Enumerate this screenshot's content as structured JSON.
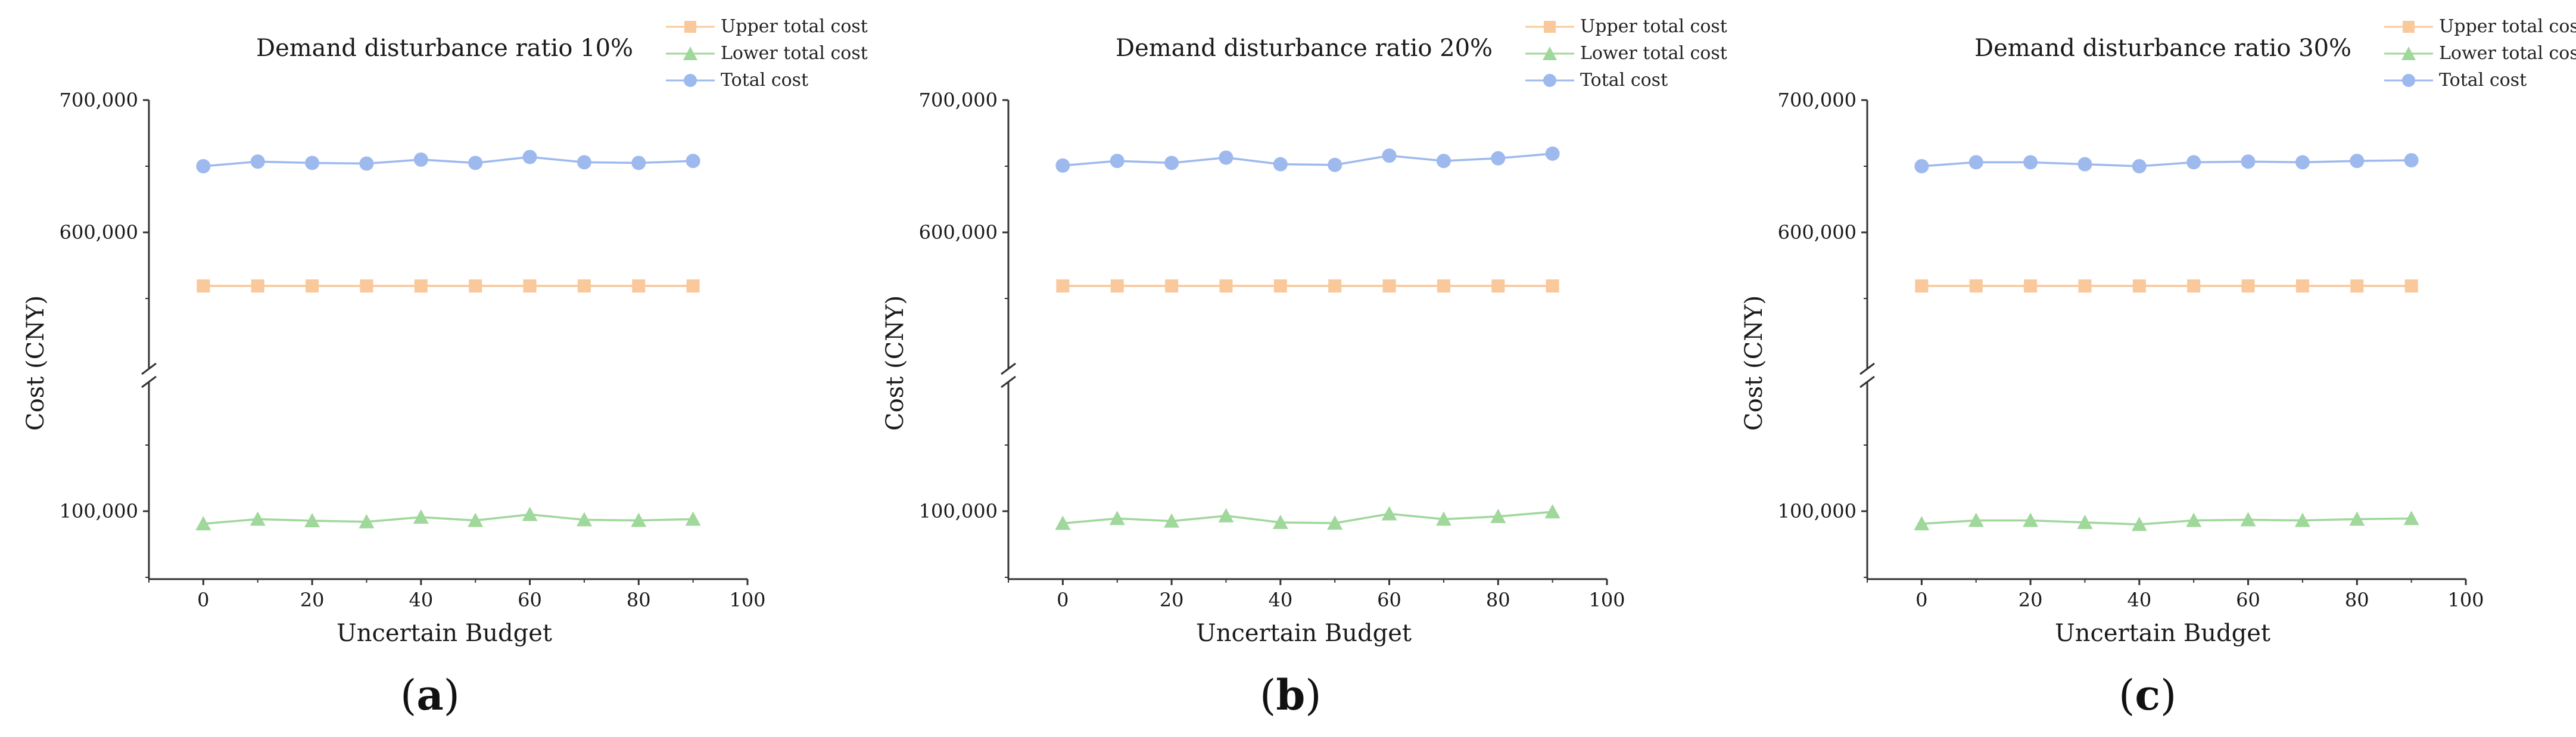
{
  "chart_data": [
    {
      "type": "line",
      "panel_label": "a",
      "title": "Demand disturbance ratio 10%",
      "xlabel": "Uncertain Budget",
      "ylabel": "Cost (CNY)",
      "xlim": [
        -10,
        100
      ],
      "x_ticks": [
        0,
        20,
        40,
        60,
        80,
        100
      ],
      "y_ticks_upper": [
        600000,
        700000
      ],
      "y_ticks_lower": [
        100000
      ],
      "y_tick_labels": [
        "700,000",
        "600,000",
        "100,000"
      ],
      "axis_break": true,
      "x": [
        0,
        10,
        20,
        30,
        40,
        50,
        60,
        70,
        80,
        90
      ],
      "series": [
        {
          "name": "Upper total cost",
          "marker": "square",
          "color": "#F9C89B",
          "values": [
            559500,
            559500,
            559500,
            559500,
            559500,
            559500,
            559500,
            559500,
            559500,
            559500
          ]
        },
        {
          "name": "Lower total cost",
          "marker": "triangle",
          "color": "#9FD89A",
          "values": [
            90500,
            94000,
            92800,
            92000,
            95500,
            93000,
            97500,
            93500,
            93000,
            94000
          ]
        },
        {
          "name": "Total cost",
          "marker": "circle",
          "color": "#9DB9EE",
          "values": [
            650000,
            653500,
            652500,
            652000,
            655000,
            652500,
            657000,
            653000,
            652500,
            654000
          ]
        }
      ]
    },
    {
      "type": "line",
      "panel_label": "b",
      "title": "Demand disturbance ratio 20%",
      "xlabel": "Uncertain Budget",
      "ylabel": "Cost (CNY)",
      "xlim": [
        -10,
        100
      ],
      "x_ticks": [
        0,
        20,
        40,
        60,
        80,
        100
      ],
      "y_ticks_upper": [
        600000,
        700000
      ],
      "y_ticks_lower": [
        100000
      ],
      "y_tick_labels": [
        "700,000",
        "600,000",
        "100,000"
      ],
      "axis_break": true,
      "x": [
        0,
        10,
        20,
        30,
        40,
        50,
        60,
        70,
        80,
        90
      ],
      "series": [
        {
          "name": "Upper total cost",
          "marker": "square",
          "color": "#F9C89B",
          "values": [
            559500,
            559500,
            559500,
            559500,
            559500,
            559500,
            559500,
            559500,
            559500,
            559500
          ]
        },
        {
          "name": "Lower total cost",
          "marker": "triangle",
          "color": "#9FD89A",
          "values": [
            90800,
            94500,
            92500,
            96500,
            91500,
            91000,
            98000,
            94000,
            96000,
            99500
          ]
        },
        {
          "name": "Total cost",
          "marker": "circle",
          "color": "#9DB9EE",
          "values": [
            650500,
            654000,
            652500,
            656500,
            651500,
            651000,
            658000,
            654000,
            656000,
            659500
          ]
        }
      ]
    },
    {
      "type": "line",
      "panel_label": "c",
      "title": "Demand disturbance ratio 30%",
      "xlabel": "Uncertain Budget",
      "ylabel": "Cost (CNY)",
      "xlim": [
        -10,
        100
      ],
      "x_ticks": [
        0,
        20,
        40,
        60,
        80,
        100
      ],
      "y_ticks_upper": [
        600000,
        700000
      ],
      "y_ticks_lower": [
        100000
      ],
      "y_tick_labels": [
        "700,000",
        "600,000",
        "100,000"
      ],
      "axis_break": true,
      "x": [
        0,
        10,
        20,
        30,
        40,
        50,
        60,
        70,
        80,
        90
      ],
      "series": [
        {
          "name": "Upper total cost",
          "marker": "square",
          "color": "#F9C89B",
          "values": [
            559500,
            559500,
            559500,
            559500,
            559500,
            559500,
            559500,
            559500,
            559500,
            559500
          ]
        },
        {
          "name": "Lower total cost",
          "marker": "triangle",
          "color": "#9FD89A",
          "values": [
            90500,
            93000,
            93000,
            91500,
            90000,
            93000,
            93500,
            93000,
            94000,
            94500
          ]
        },
        {
          "name": "Total cost",
          "marker": "circle",
          "color": "#9DB9EE",
          "values": [
            650000,
            653000,
            653000,
            651500,
            650000,
            653000,
            653500,
            653000,
            654000,
            654500
          ]
        }
      ]
    }
  ]
}
